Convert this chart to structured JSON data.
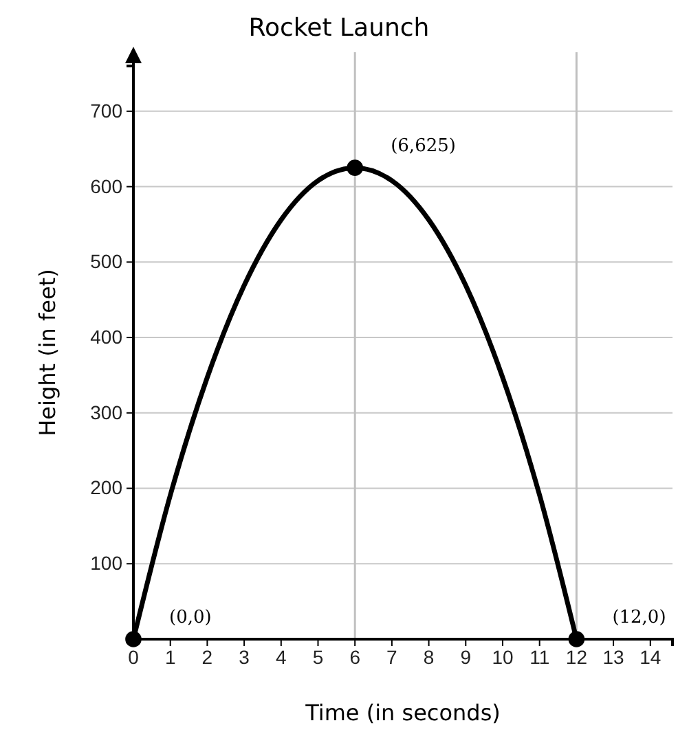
{
  "chart_data": {
    "type": "line",
    "title": "Rocket Launch",
    "xlabel": "Time (in seconds)",
    "ylabel": "Height (in feet)",
    "xlim": [
      0,
      14.6
    ],
    "ylim": [
      0,
      760
    ],
    "xticks": [
      0,
      1,
      2,
      3,
      4,
      5,
      6,
      7,
      8,
      9,
      10,
      11,
      12,
      13,
      14
    ],
    "yticks": [
      100,
      200,
      300,
      400,
      500,
      600,
      700
    ],
    "grid": "y",
    "marker": "none",
    "line_style": "solid",
    "ref_lines": [
      {
        "axis": "x",
        "value": 6,
        "color": "#c0c0c0"
      },
      {
        "axis": "x",
        "value": 12,
        "color": "#c0c0c0"
      }
    ],
    "series": [
      {
        "color": "#000000",
        "x": [
          0,
          1,
          2,
          3,
          4,
          5,
          6,
          7,
          8,
          9,
          10,
          11,
          12
        ],
        "values": [
          0,
          191,
          347,
          469,
          556,
          608,
          625,
          608,
          556,
          469,
          347,
          191,
          0
        ]
      },
      {
        "type": "scatter",
        "color": "#000000",
        "marker": "circle",
        "x": [
          0,
          6,
          12
        ],
        "values": [
          0,
          625,
          0
        ]
      }
    ],
    "annotations": [
      {
        "text": "(0,0)",
        "x": 0,
        "y": 0
      },
      {
        "text": "(6,625)",
        "x": 6,
        "y": 625
      },
      {
        "text": "(12,0)",
        "x": 12,
        "y": 0
      }
    ]
  }
}
